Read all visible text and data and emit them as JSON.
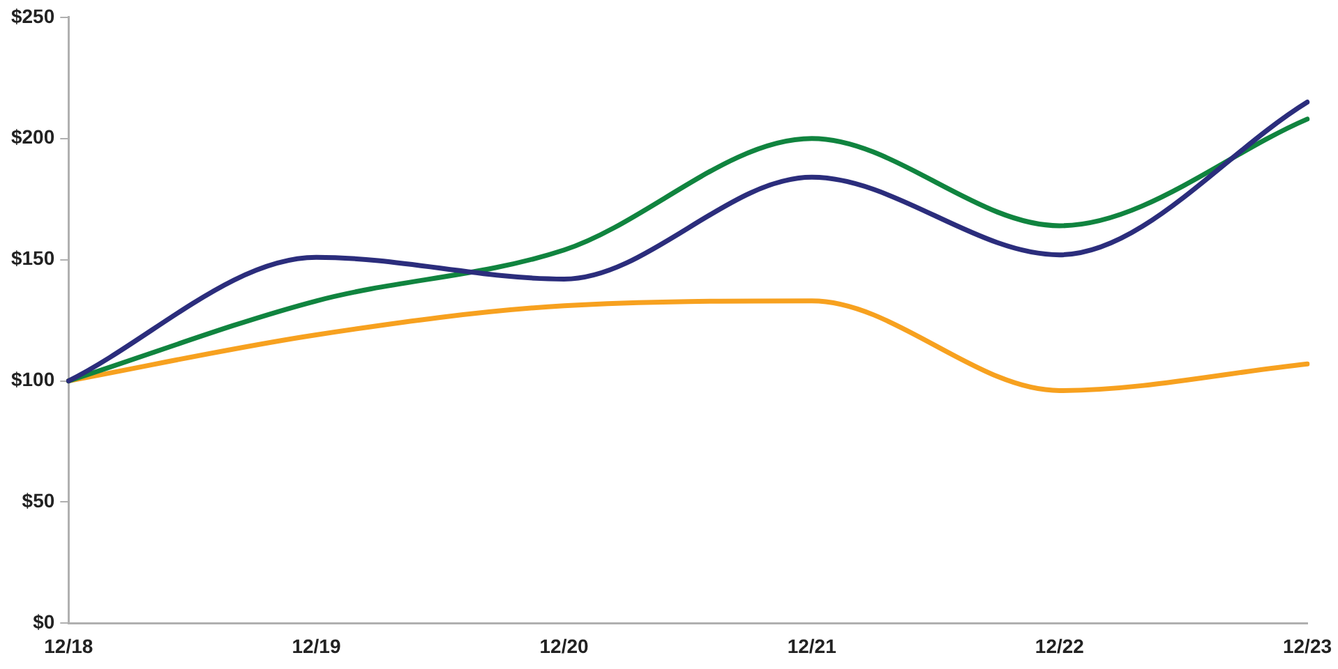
{
  "chart_data": {
    "type": "line",
    "categories": [
      "12/18",
      "12/19",
      "12/20",
      "12/21",
      "12/22",
      "12/23"
    ],
    "series": [
      {
        "color": "#2b2d7c",
        "values": [
          100,
          151,
          142,
          184,
          152,
          215
        ]
      },
      {
        "color": "#10843f",
        "values": [
          100,
          133,
          154,
          200,
          164,
          208
        ]
      },
      {
        "color": "#f7a11f",
        "values": [
          100,
          119,
          131,
          133,
          96,
          107
        ]
      }
    ],
    "ylim": [
      0,
      250
    ],
    "yticks": [
      {
        "value": 0,
        "label": "$0"
      },
      {
        "value": 50,
        "label": "$50"
      },
      {
        "value": 100,
        "label": "$100"
      },
      {
        "value": 150,
        "label": "$150"
      },
      {
        "value": 200,
        "label": "$200"
      },
      {
        "value": 250,
        "label": "$250"
      }
    ],
    "grid": false,
    "legend": false,
    "marker": "none",
    "line_style": "solid"
  }
}
